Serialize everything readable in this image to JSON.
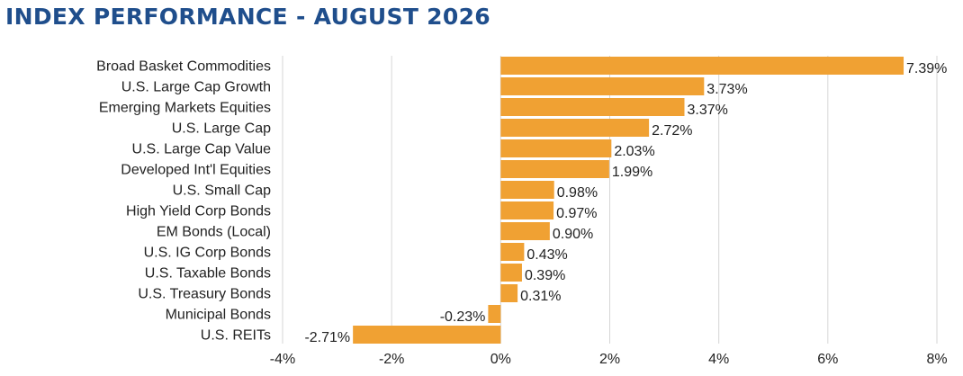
{
  "chart_data": {
    "type": "bar",
    "orientation": "horizontal",
    "title": "INDEX PERFORMANCE - AUGUST 2026",
    "categories": [
      "Broad Basket Commodities",
      "U.S. Large Cap Growth",
      "Emerging Markets Equities",
      "U.S. Large Cap",
      "U.S. Large Cap Value",
      "Developed Int'l Equities",
      "U.S. Small Cap",
      "High Yield Corp Bonds",
      "EM Bonds (Local)",
      "U.S. IG Corp Bonds",
      "U.S. Taxable Bonds",
      "U.S. Treasury Bonds",
      "Municipal Bonds",
      "U.S. REITs"
    ],
    "values": [
      7.39,
      3.73,
      3.37,
      2.72,
      2.03,
      1.99,
      0.98,
      0.97,
      0.9,
      0.43,
      0.39,
      0.31,
      -0.23,
      -2.71
    ],
    "value_labels": [
      "7.39%",
      "3.73%",
      "3.37%",
      "2.72%",
      "2.03%",
      "1.99%",
      "0.98%",
      "0.97%",
      "0.90%",
      "0.43%",
      "0.39%",
      "0.31%",
      "-0.23%",
      "-2.71%"
    ],
    "xlim": [
      -4,
      8
    ],
    "xticks": [
      -4,
      -2,
      0,
      2,
      4,
      6,
      8
    ],
    "xtick_labels": [
      "-4%",
      "-2%",
      "0%",
      "2%",
      "4%",
      "6%",
      "8%"
    ],
    "grid": true,
    "bar_color": "#f0a133",
    "title_color": "#1f4e8c",
    "grid_color": "#d6d6d6"
  }
}
